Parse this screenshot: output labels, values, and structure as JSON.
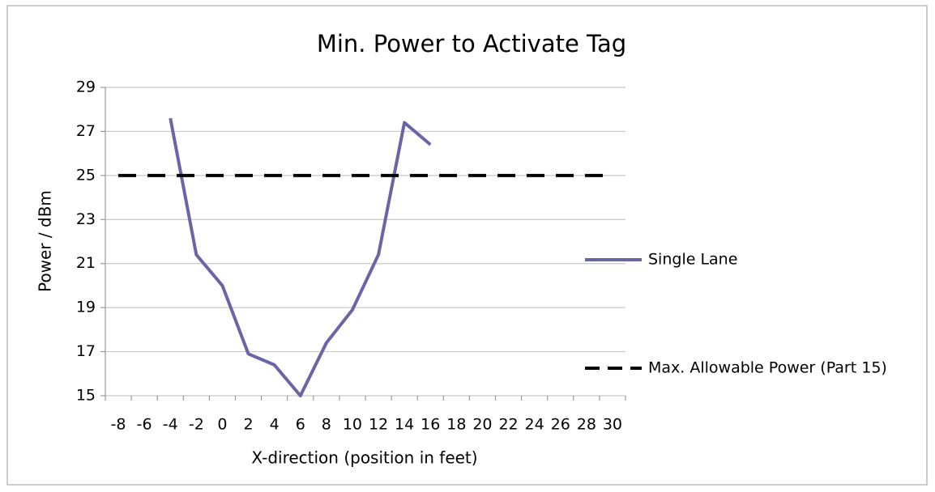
{
  "chart_data": {
    "type": "line",
    "title": "Min. Power to Activate Tag",
    "x_label": "X-direction (position in feet)",
    "y_label": "Power / dBm",
    "categories": [
      -8,
      -6,
      -4,
      -2,
      0,
      2,
      4,
      6,
      8,
      10,
      12,
      14,
      16,
      18,
      20,
      22,
      24,
      26,
      28,
      30
    ],
    "series": [
      {
        "name": "Single Lane",
        "color": "#6a66a6",
        "dashed": false,
        "values": [
          null,
          null,
          27.6,
          21.4,
          20.0,
          16.9,
          16.4,
          15.0,
          17.4,
          18.9,
          21.4,
          27.4,
          26.4,
          null,
          null,
          null,
          null,
          null,
          null,
          null
        ]
      },
      {
        "name": "Max. Allowable Power (Part 15)",
        "color": "#000000",
        "dashed": true,
        "values": [
          25,
          25,
          25,
          25,
          25,
          25,
          25,
          25,
          25,
          25,
          25,
          25,
          25,
          25,
          25,
          25,
          25,
          25,
          25,
          25
        ]
      }
    ],
    "ylim": [
      15,
      29
    ],
    "yticks": [
      15,
      17,
      19,
      21,
      23,
      25,
      27,
      29
    ],
    "grid": true,
    "legend": "right"
  }
}
